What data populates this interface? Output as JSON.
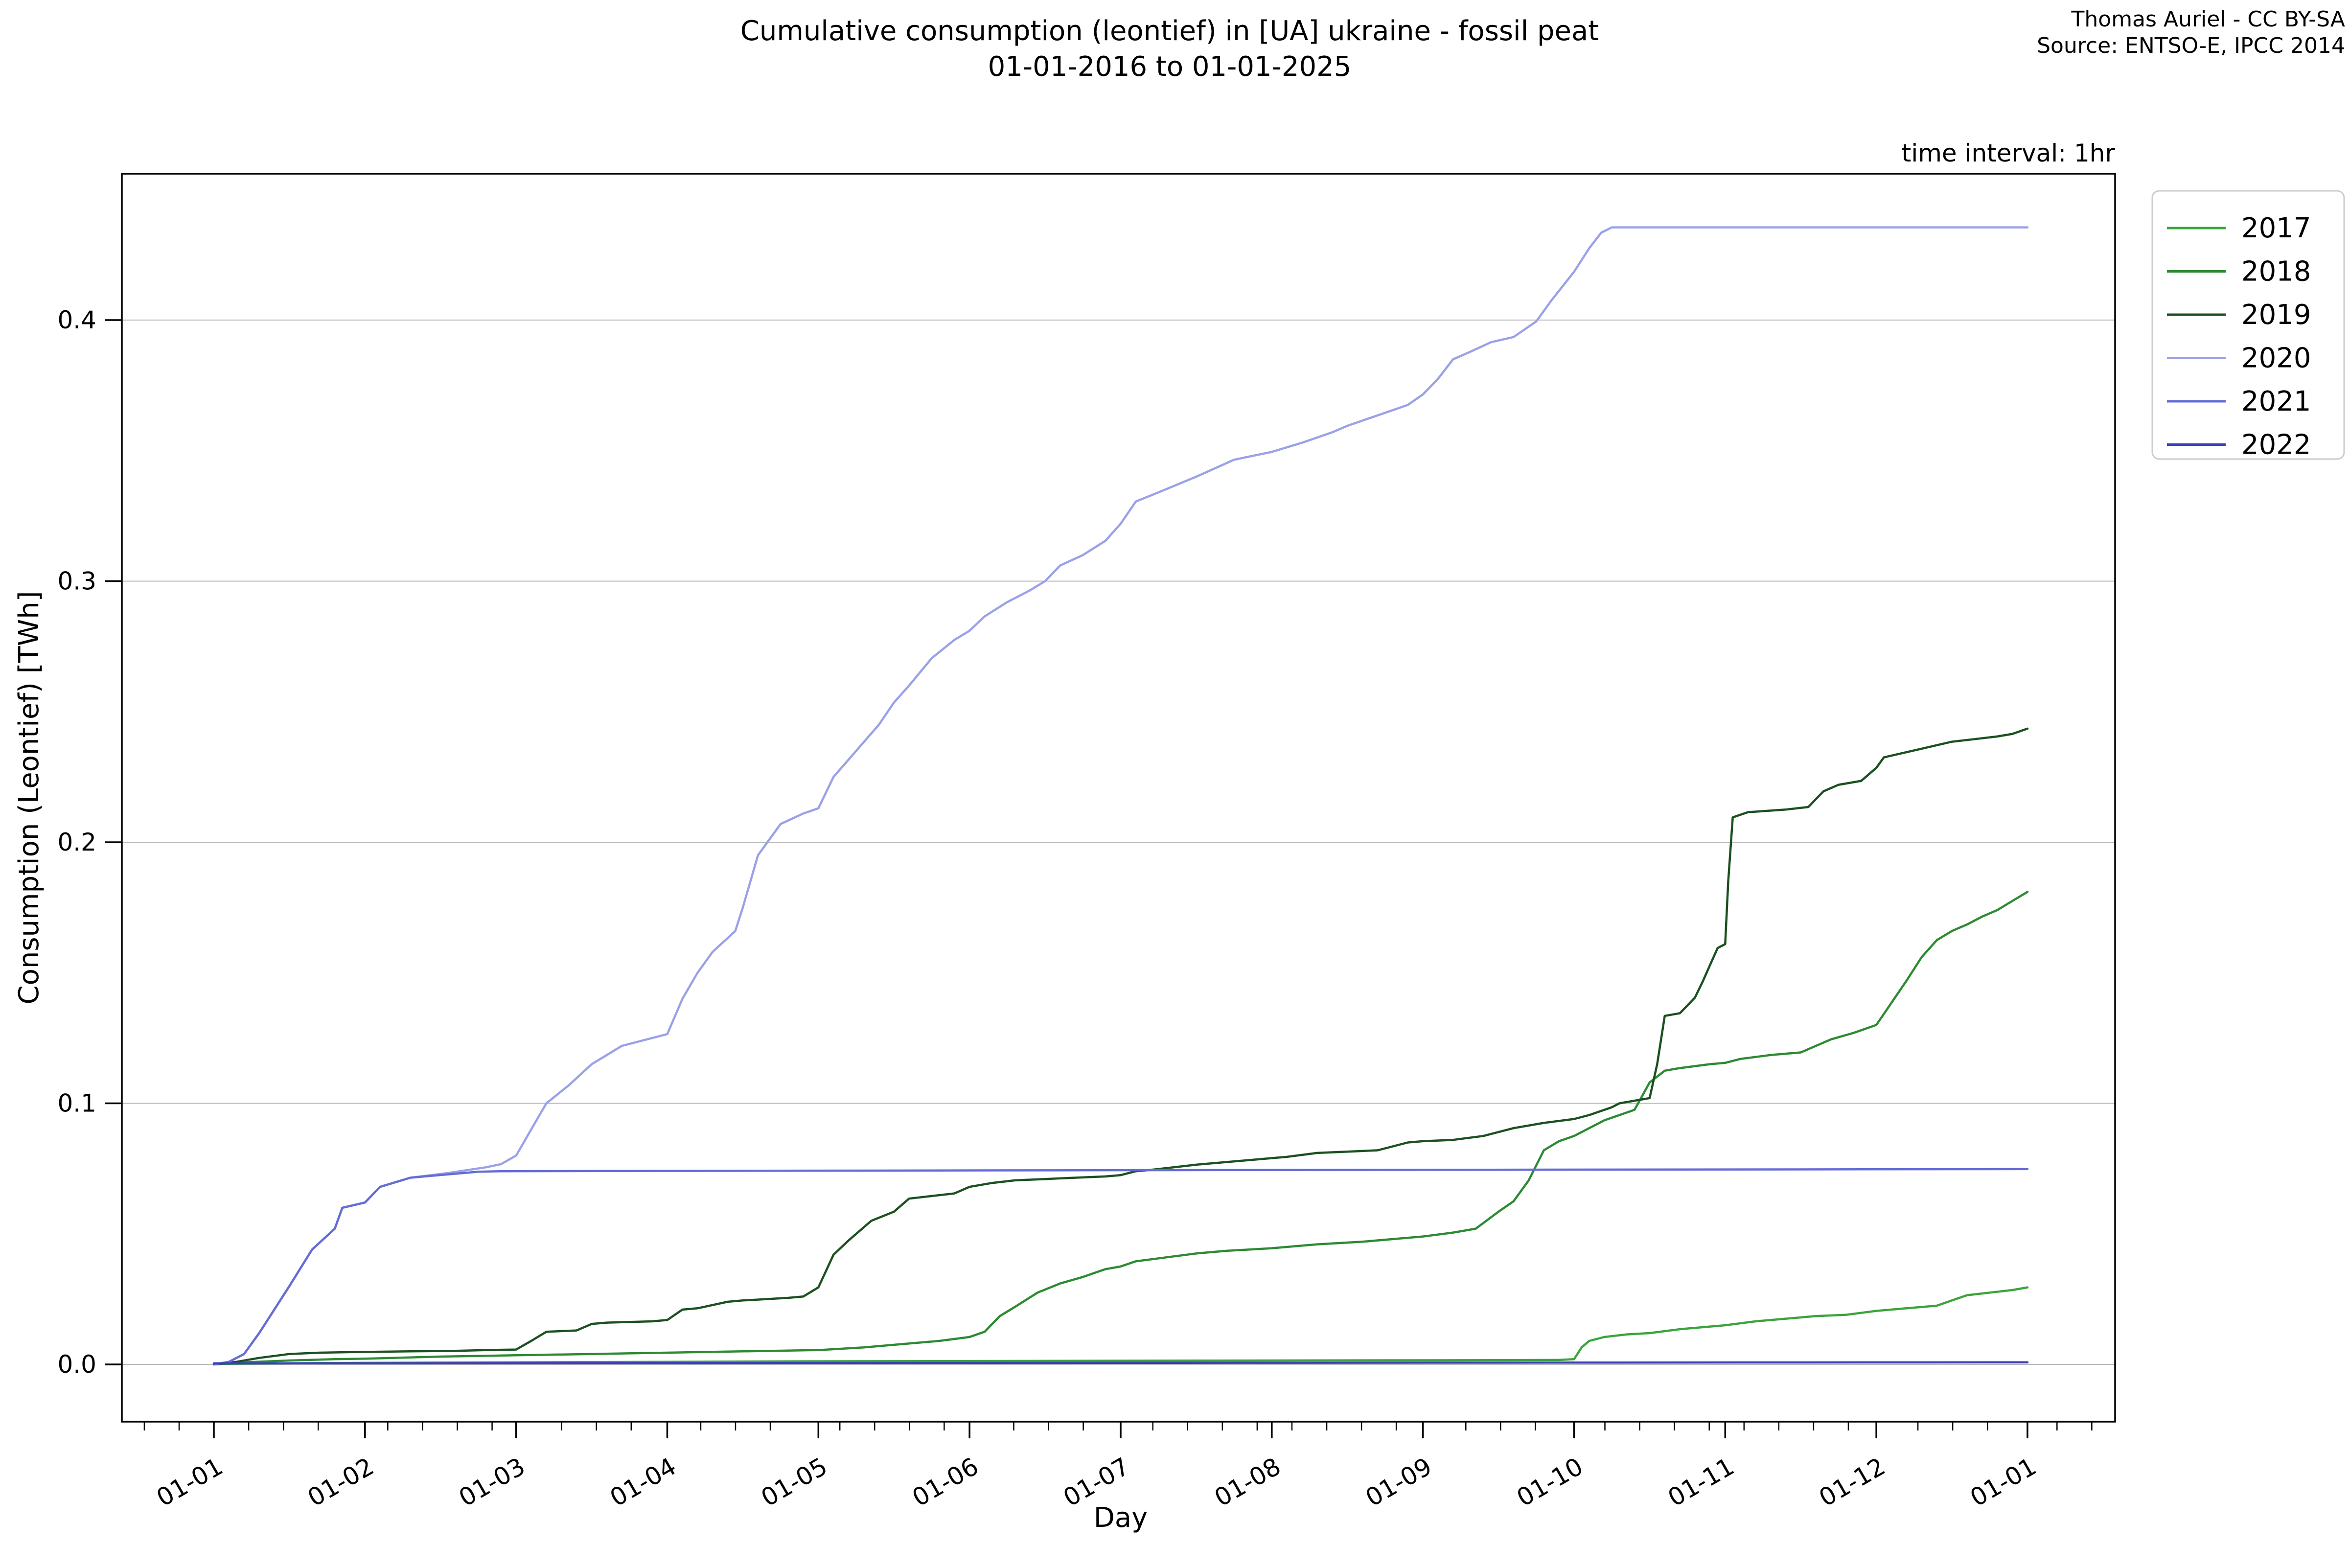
{
  "figure": {
    "title_line1": "Cumulative consumption (leontief) in [UA] ukraine - fossil peat",
    "title_line2": "01-01-2016 to 01-01-2025",
    "attribution_line1": "Thomas Auriel - CC BY-SA",
    "attribution_line2": "Source: ENTSO-E, IPCC 2014",
    "time_interval_note": "time interval: 1hr"
  },
  "chart_data": {
    "type": "line",
    "title": "Cumulative consumption (leontief) in [UA] ukraine - fossil peat 01-01-2016 to 01-01-2025",
    "xlabel": "Day",
    "ylabel": "Consumption (Leontief) [TWh]",
    "x_tick_labels": [
      "01-01",
      "01-02",
      "01-03",
      "01-04",
      "01-05",
      "01-06",
      "01-07",
      "01-08",
      "01-09",
      "01-10",
      "01-11",
      "01-12",
      "01-01"
    ],
    "y_ticks": [
      0.0,
      0.1,
      0.2,
      0.3,
      0.4
    ],
    "y_tick_labels": [
      "0.0",
      "0.1",
      "0.2",
      "0.3",
      "0.4"
    ],
    "ylim": [
      -0.022,
      0.456
    ],
    "xlim_months": [
      -0.61,
      12.58
    ],
    "grid": true,
    "grid_color": "#b9b9b9",
    "legend_position": "upper right outside",
    "x_axis_unit": "month-day of year, all years overlaid",
    "series": [
      {
        "name": "2017",
        "color": "#3ba43c",
        "points": [
          [
            0,
            0.0002
          ],
          [
            1,
            0.0006
          ],
          [
            2,
            0.0008
          ],
          [
            3,
            0.001
          ],
          [
            4,
            0.0012
          ],
          [
            5,
            0.0013
          ],
          [
            6,
            0.0014
          ],
          [
            7,
            0.0015
          ],
          [
            8,
            0.0016
          ],
          [
            8.9,
            0.0017
          ],
          [
            9.0,
            0.002
          ],
          [
            9.05,
            0.0065
          ],
          [
            9.1,
            0.009
          ],
          [
            9.2,
            0.0105
          ],
          [
            9.35,
            0.0115
          ],
          [
            9.5,
            0.012
          ],
          [
            9.7,
            0.0135
          ],
          [
            9.9,
            0.0145
          ],
          [
            10.0,
            0.015
          ],
          [
            10.2,
            0.0165
          ],
          [
            10.4,
            0.0175
          ],
          [
            10.6,
            0.0185
          ],
          [
            10.8,
            0.019
          ],
          [
            11.0,
            0.0205
          ],
          [
            11.2,
            0.0215
          ],
          [
            11.4,
            0.0225
          ],
          [
            11.5,
            0.0245
          ],
          [
            11.6,
            0.0265
          ],
          [
            11.75,
            0.0275
          ],
          [
            11.9,
            0.0285
          ],
          [
            12,
            0.0295
          ]
        ]
      },
      {
        "name": "2018",
        "color": "#2d8a33",
        "points": [
          [
            0,
            0
          ],
          [
            0.2,
            0.0008
          ],
          [
            0.5,
            0.0015
          ],
          [
            0.8,
            0.002
          ],
          [
            1.0,
            0.0022
          ],
          [
            1.5,
            0.003
          ],
          [
            2.0,
            0.0035
          ],
          [
            2.5,
            0.004
          ],
          [
            3.0,
            0.0045
          ],
          [
            3.5,
            0.005
          ],
          [
            4.0,
            0.0055
          ],
          [
            4.3,
            0.0065
          ],
          [
            4.6,
            0.008
          ],
          [
            4.8,
            0.009
          ],
          [
            5.0,
            0.0105
          ],
          [
            5.1,
            0.0125
          ],
          [
            5.2,
            0.0185
          ],
          [
            5.3,
            0.022
          ],
          [
            5.45,
            0.0275
          ],
          [
            5.6,
            0.031
          ],
          [
            5.75,
            0.0335
          ],
          [
            5.9,
            0.0365
          ],
          [
            6.0,
            0.0375
          ],
          [
            6.1,
            0.0395
          ],
          [
            6.3,
            0.041
          ],
          [
            6.5,
            0.0425
          ],
          [
            6.7,
            0.0435
          ],
          [
            7.0,
            0.0445
          ],
          [
            7.3,
            0.046
          ],
          [
            7.6,
            0.047
          ],
          [
            7.9,
            0.0485
          ],
          [
            8.0,
            0.049
          ],
          [
            8.2,
            0.0505
          ],
          [
            8.35,
            0.052
          ],
          [
            8.5,
            0.0585
          ],
          [
            8.6,
            0.0625
          ],
          [
            8.7,
            0.0705
          ],
          [
            8.8,
            0.082
          ],
          [
            8.9,
            0.0855
          ],
          [
            9.0,
            0.0875
          ],
          [
            9.2,
            0.0935
          ],
          [
            9.4,
            0.0975
          ],
          [
            9.5,
            0.108
          ],
          [
            9.6,
            0.1125
          ],
          [
            9.7,
            0.1135
          ],
          [
            9.9,
            0.115
          ],
          [
            10.0,
            0.1155
          ],
          [
            10.1,
            0.117
          ],
          [
            10.3,
            0.1185
          ],
          [
            10.5,
            0.1195
          ],
          [
            10.7,
            0.1245
          ],
          [
            10.85,
            0.127
          ],
          [
            11.0,
            0.13
          ],
          [
            11.1,
            0.1385
          ],
          [
            11.2,
            0.147
          ],
          [
            11.3,
            0.156
          ],
          [
            11.4,
            0.1625
          ],
          [
            11.5,
            0.166
          ],
          [
            11.6,
            0.1685
          ],
          [
            11.7,
            0.1715
          ],
          [
            11.8,
            0.174
          ],
          [
            11.9,
            0.1775
          ],
          [
            12,
            0.181
          ]
        ]
      },
      {
        "name": "2019",
        "color": "#1b5120",
        "points": [
          [
            0,
            0
          ],
          [
            0.15,
            0.001
          ],
          [
            0.3,
            0.0025
          ],
          [
            0.5,
            0.004
          ],
          [
            0.7,
            0.0045
          ],
          [
            1.0,
            0.0048
          ],
          [
            1.3,
            0.005
          ],
          [
            1.6,
            0.0052
          ],
          [
            1.8,
            0.0055
          ],
          [
            2.0,
            0.0057
          ],
          [
            2.1,
            0.009
          ],
          [
            2.2,
            0.0125
          ],
          [
            2.4,
            0.013
          ],
          [
            2.5,
            0.0155
          ],
          [
            2.6,
            0.016
          ],
          [
            2.9,
            0.0165
          ],
          [
            3.0,
            0.017
          ],
          [
            3.1,
            0.021
          ],
          [
            3.2,
            0.0215
          ],
          [
            3.4,
            0.024
          ],
          [
            3.5,
            0.0245
          ],
          [
            3.8,
            0.0255
          ],
          [
            3.9,
            0.026
          ],
          [
            4.0,
            0.0295
          ],
          [
            4.1,
            0.042
          ],
          [
            4.2,
            0.0475
          ],
          [
            4.35,
            0.055
          ],
          [
            4.5,
            0.0585
          ],
          [
            4.6,
            0.0635
          ],
          [
            4.75,
            0.0645
          ],
          [
            4.9,
            0.0655
          ],
          [
            5.0,
            0.068
          ],
          [
            5.15,
            0.0695
          ],
          [
            5.3,
            0.0705
          ],
          [
            5.5,
            0.071
          ],
          [
            5.7,
            0.0715
          ],
          [
            5.9,
            0.072
          ],
          [
            6.0,
            0.0725
          ],
          [
            6.1,
            0.074
          ],
          [
            6.2,
            0.0745
          ],
          [
            6.5,
            0.0765
          ],
          [
            6.7,
            0.0775
          ],
          [
            7.0,
            0.079
          ],
          [
            7.1,
            0.0795
          ],
          [
            7.3,
            0.081
          ],
          [
            7.5,
            0.0815
          ],
          [
            7.7,
            0.082
          ],
          [
            7.9,
            0.085
          ],
          [
            8.0,
            0.0855
          ],
          [
            8.2,
            0.086
          ],
          [
            8.4,
            0.0875
          ],
          [
            8.6,
            0.0905
          ],
          [
            8.8,
            0.0925
          ],
          [
            9.0,
            0.094
          ],
          [
            9.1,
            0.0955
          ],
          [
            9.25,
            0.0985
          ],
          [
            9.3,
            0.1
          ],
          [
            9.45,
            0.1015
          ],
          [
            9.5,
            0.102
          ],
          [
            9.55,
            0.115
          ],
          [
            9.6,
            0.1335
          ],
          [
            9.7,
            0.1345
          ],
          [
            9.8,
            0.1405
          ],
          [
            9.85,
            0.1465
          ],
          [
            9.9,
            0.153
          ],
          [
            9.95,
            0.1595
          ],
          [
            10.0,
            0.161
          ],
          [
            10.02,
            0.185
          ],
          [
            10.05,
            0.2095
          ],
          [
            10.15,
            0.2115
          ],
          [
            10.4,
            0.2125
          ],
          [
            10.55,
            0.2135
          ],
          [
            10.65,
            0.2195
          ],
          [
            10.75,
            0.222
          ],
          [
            10.9,
            0.2235
          ],
          [
            11.0,
            0.2285
          ],
          [
            11.05,
            0.2325
          ],
          [
            11.2,
            0.2345
          ],
          [
            11.35,
            0.2365
          ],
          [
            11.5,
            0.2385
          ],
          [
            11.65,
            0.2395
          ],
          [
            11.8,
            0.2405
          ],
          [
            11.9,
            0.2415
          ],
          [
            12,
            0.2435
          ]
        ]
      },
      {
        "name": "2020",
        "color": "#9aa1e7",
        "points": [
          [
            0,
            0
          ],
          [
            0.1,
            0.001
          ],
          [
            0.2,
            0.004
          ],
          [
            0.3,
            0.012
          ],
          [
            0.5,
            0.03
          ],
          [
            0.65,
            0.044
          ],
          [
            0.8,
            0.052
          ],
          [
            0.85,
            0.06
          ],
          [
            1.0,
            0.062
          ],
          [
            1.1,
            0.068
          ],
          [
            1.3,
            0.0715
          ],
          [
            1.55,
            0.0733
          ],
          [
            1.8,
            0.0755
          ],
          [
            1.9,
            0.0767
          ],
          [
            2.0,
            0.08
          ],
          [
            2.1,
            0.09
          ],
          [
            2.2,
            0.1
          ],
          [
            2.35,
            0.107
          ],
          [
            2.5,
            0.115
          ],
          [
            2.7,
            0.122
          ],
          [
            3.0,
            0.1265
          ],
          [
            3.1,
            0.14
          ],
          [
            3.2,
            0.15
          ],
          [
            3.3,
            0.158
          ],
          [
            3.45,
            0.166
          ],
          [
            3.5,
            0.175
          ],
          [
            3.6,
            0.195
          ],
          [
            3.7,
            0.203
          ],
          [
            3.75,
            0.207
          ],
          [
            3.9,
            0.211
          ],
          [
            4.0,
            0.213
          ],
          [
            4.1,
            0.225
          ],
          [
            4.25,
            0.235
          ],
          [
            4.4,
            0.245
          ],
          [
            4.5,
            0.2535
          ],
          [
            4.6,
            0.26
          ],
          [
            4.75,
            0.2705
          ],
          [
            4.9,
            0.2775
          ],
          [
            5.0,
            0.281
          ],
          [
            5.1,
            0.2865
          ],
          [
            5.25,
            0.292
          ],
          [
            5.4,
            0.2965
          ],
          [
            5.5,
            0.3
          ],
          [
            5.6,
            0.306
          ],
          [
            5.75,
            0.31
          ],
          [
            5.9,
            0.3155
          ],
          [
            6.0,
            0.322
          ],
          [
            6.1,
            0.3305
          ],
          [
            6.25,
            0.334
          ],
          [
            6.5,
            0.34
          ],
          [
            6.75,
            0.3465
          ],
          [
            7.0,
            0.3495
          ],
          [
            7.2,
            0.353
          ],
          [
            7.4,
            0.357
          ],
          [
            7.5,
            0.3595
          ],
          [
            7.65,
            0.3625
          ],
          [
            7.8,
            0.3655
          ],
          [
            7.9,
            0.3675
          ],
          [
            8.0,
            0.3715
          ],
          [
            8.1,
            0.3775
          ],
          [
            8.2,
            0.385
          ],
          [
            8.3,
            0.3875
          ],
          [
            8.45,
            0.3915
          ],
          [
            8.6,
            0.3935
          ],
          [
            8.75,
            0.3995
          ],
          [
            8.85,
            0.4075
          ],
          [
            9.0,
            0.4185
          ],
          [
            9.1,
            0.4275
          ],
          [
            9.18,
            0.4335
          ],
          [
            9.25,
            0.4355
          ],
          [
            12,
            0.4355
          ]
        ]
      },
      {
        "name": "2021",
        "color": "#656cd6",
        "points": [
          [
            0,
            0
          ],
          [
            0.1,
            0.001
          ],
          [
            0.2,
            0.004
          ],
          [
            0.3,
            0.012
          ],
          [
            0.5,
            0.03
          ],
          [
            0.65,
            0.044
          ],
          [
            0.8,
            0.052
          ],
          [
            0.85,
            0.06
          ],
          [
            1.0,
            0.062
          ],
          [
            1.1,
            0.068
          ],
          [
            1.3,
            0.0715
          ],
          [
            1.55,
            0.0728
          ],
          [
            1.75,
            0.0738
          ],
          [
            1.9,
            0.074
          ],
          [
            6.0,
            0.0744
          ],
          [
            12,
            0.0748
          ]
        ]
      },
      {
        "name": "2022",
        "color": "#3a40bb",
        "points": [
          [
            0,
            0.0004
          ],
          [
            6,
            0.0006
          ],
          [
            12,
            0.0008
          ]
        ]
      }
    ]
  }
}
